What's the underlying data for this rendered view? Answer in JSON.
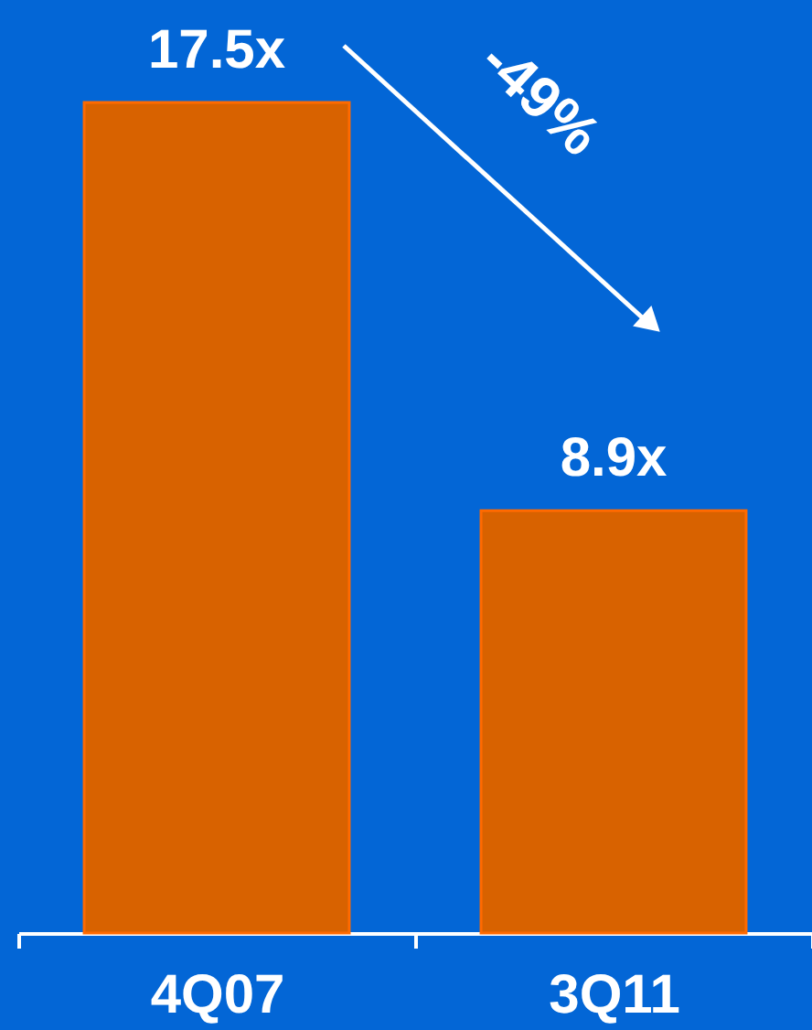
{
  "chart_data": {
    "type": "bar",
    "categories": [
      "4Q07",
      "3Q11"
    ],
    "values": [
      17.5,
      8.9
    ],
    "color": "#d86200",
    "value_labels": [
      "17.5x",
      "8.9x"
    ],
    "annotations": [
      "-49%"
    ]
  }
}
